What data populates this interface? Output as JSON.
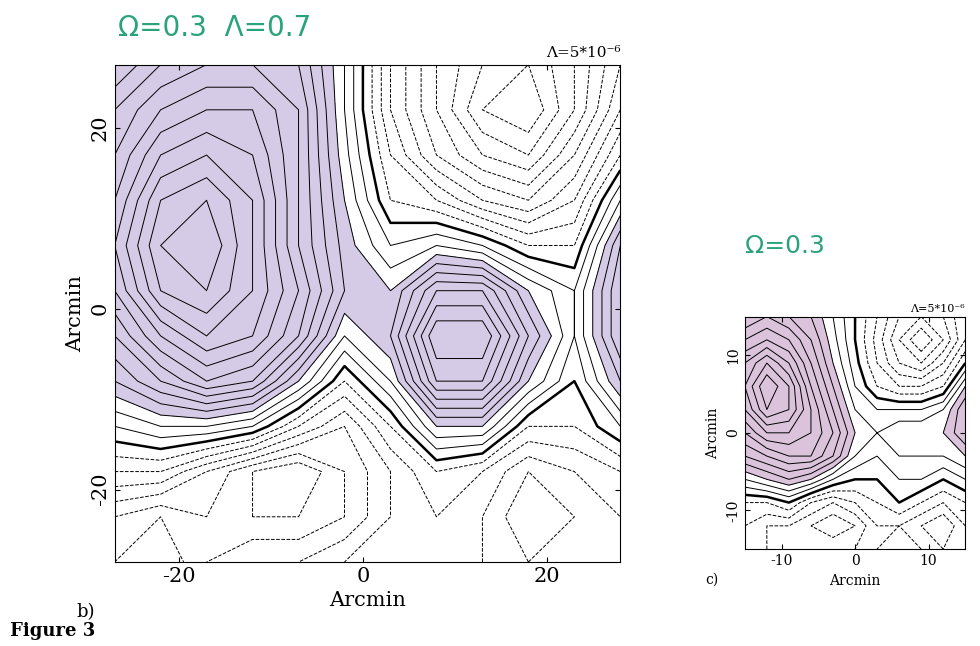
{
  "caption": "Figure 3",
  "chart_data": [
    {
      "type": "contour",
      "title": "Ω=0.3  Λ=0.7",
      "title_color": "#2aa37a",
      "panel_label": "b)",
      "annotation": "Λ=5*10⁻⁶",
      "x_label": "Arcmin",
      "y_label": "Arcmin",
      "xlim": [
        -27,
        28
      ],
      "ylim": [
        -28,
        27
      ],
      "xticks": [
        -20,
        0,
        20
      ],
      "yticks": [
        -20,
        0,
        20
      ],
      "x": [
        -27,
        -22,
        -17,
        -12,
        -7,
        -2,
        3,
        8,
        13,
        18,
        23,
        28
      ],
      "y": [
        -28,
        -23,
        -18,
        -13,
        -8,
        -3,
        2,
        7,
        12,
        17,
        22,
        27
      ],
      "levels": [
        -55,
        -50,
        -45,
        -40,
        -35,
        -30,
        -25,
        -20,
        -15,
        -10,
        -5,
        0,
        5,
        10,
        15,
        20,
        25,
        30,
        35,
        40,
        45,
        50,
        55,
        60,
        65,
        70
      ],
      "color": "#000000",
      "shade_color": "#a58cc8",
      "shade_from": 15,
      "values": [
        [
          -30,
          -35,
          -25,
          -20,
          -20,
          -15,
          -10,
          -10,
          -15,
          -20,
          -15,
          -15
        ],
        [
          -25,
          -30,
          -25,
          -30,
          -30,
          -25,
          -15,
          -10,
          -15,
          -25,
          -20,
          -15
        ],
        [
          -10,
          -10,
          -20,
          -30,
          -35,
          -25,
          -15,
          -5,
          -10,
          -20,
          -15,
          -10
        ],
        [
          5,
          10,
          10,
          5,
          -10,
          -20,
          -5,
          15,
          15,
          -5,
          -5,
          5
        ],
        [
          20,
          30,
          40,
          35,
          15,
          -5,
          10,
          40,
          40,
          15,
          0,
          20
        ],
        [
          30,
          45,
          55,
          50,
          35,
          10,
          20,
          50,
          50,
          25,
          5,
          30
        ],
        [
          40,
          60,
          65,
          55,
          40,
          20,
          15,
          35,
          35,
          15,
          5,
          30
        ],
        [
          45,
          65,
          70,
          55,
          35,
          18,
          5,
          10,
          5,
          -5,
          -5,
          25
        ],
        [
          40,
          60,
          65,
          55,
          35,
          15,
          -5,
          -10,
          -20,
          -25,
          -15,
          10
        ],
        [
          35,
          50,
          55,
          50,
          35,
          12,
          -10,
          -25,
          -35,
          -40,
          -25,
          -5
        ],
        [
          30,
          40,
          45,
          45,
          35,
          10,
          -15,
          -30,
          -45,
          -50,
          -35,
          -15
        ],
        [
          20,
          30,
          35,
          35,
          30,
          10,
          -15,
          -30,
          -40,
          -45,
          -35,
          -20
        ]
      ]
    },
    {
      "type": "contour",
      "title": "Ω=0.3",
      "title_color": "#2aa37a",
      "panel_label": "c)",
      "annotation": "Λ=5*10⁻⁶",
      "x_label": "Arcmin",
      "y_label": "Arcmin",
      "xlim": [
        -15,
        15
      ],
      "ylim": [
        -15,
        15
      ],
      "xticks": [
        -10,
        0,
        10
      ],
      "yticks": [
        -10,
        0,
        10
      ],
      "x": [
        -15,
        -12,
        -9,
        -6,
        -3,
        0,
        3,
        6,
        9,
        12,
        15
      ],
      "y": [
        -15,
        -12,
        -9,
        -6,
        -3,
        0,
        3,
        6,
        9,
        12,
        15
      ],
      "levels": [
        -35,
        -30,
        -25,
        -20,
        -15,
        -10,
        -5,
        0,
        5,
        10,
        15,
        20,
        25,
        30,
        35,
        40,
        45,
        50,
        55,
        60,
        65
      ],
      "color": "#000000",
      "shade_color": "#b07cb0",
      "shade_from": 15,
      "values": [
        [
          -10,
          -15,
          -15,
          -15,
          -15,
          -15,
          -10,
          -5,
          -10,
          -15,
          -10
        ],
        [
          -10,
          -15,
          -15,
          -20,
          -25,
          -20,
          -10,
          -10,
          -15,
          -20,
          -10
        ],
        [
          -5,
          -5,
          0,
          -10,
          -15,
          -10,
          -5,
          0,
          -5,
          -10,
          -5
        ],
        [
          10,
          15,
          20,
          15,
          5,
          0,
          0,
          5,
          5,
          0,
          5
        ],
        [
          25,
          30,
          35,
          35,
          25,
          10,
          5,
          10,
          10,
          10,
          15
        ],
        [
          35,
          45,
          45,
          40,
          30,
          15,
          10,
          15,
          15,
          15,
          25
        ],
        [
          45,
          60,
          55,
          40,
          25,
          10,
          5,
          5,
          5,
          10,
          25
        ],
        [
          50,
          65,
          55,
          35,
          20,
          5,
          -5,
          -10,
          -10,
          -5,
          15
        ],
        [
          45,
          55,
          45,
          30,
          15,
          2,
          -10,
          -20,
          -25,
          -15,
          0
        ],
        [
          35,
          40,
          35,
          25,
          12,
          0,
          -12,
          -25,
          -35,
          -25,
          -10
        ],
        [
          25,
          30,
          25,
          20,
          10,
          0,
          -10,
          -20,
          -25,
          -20,
          -10
        ]
      ]
    }
  ]
}
